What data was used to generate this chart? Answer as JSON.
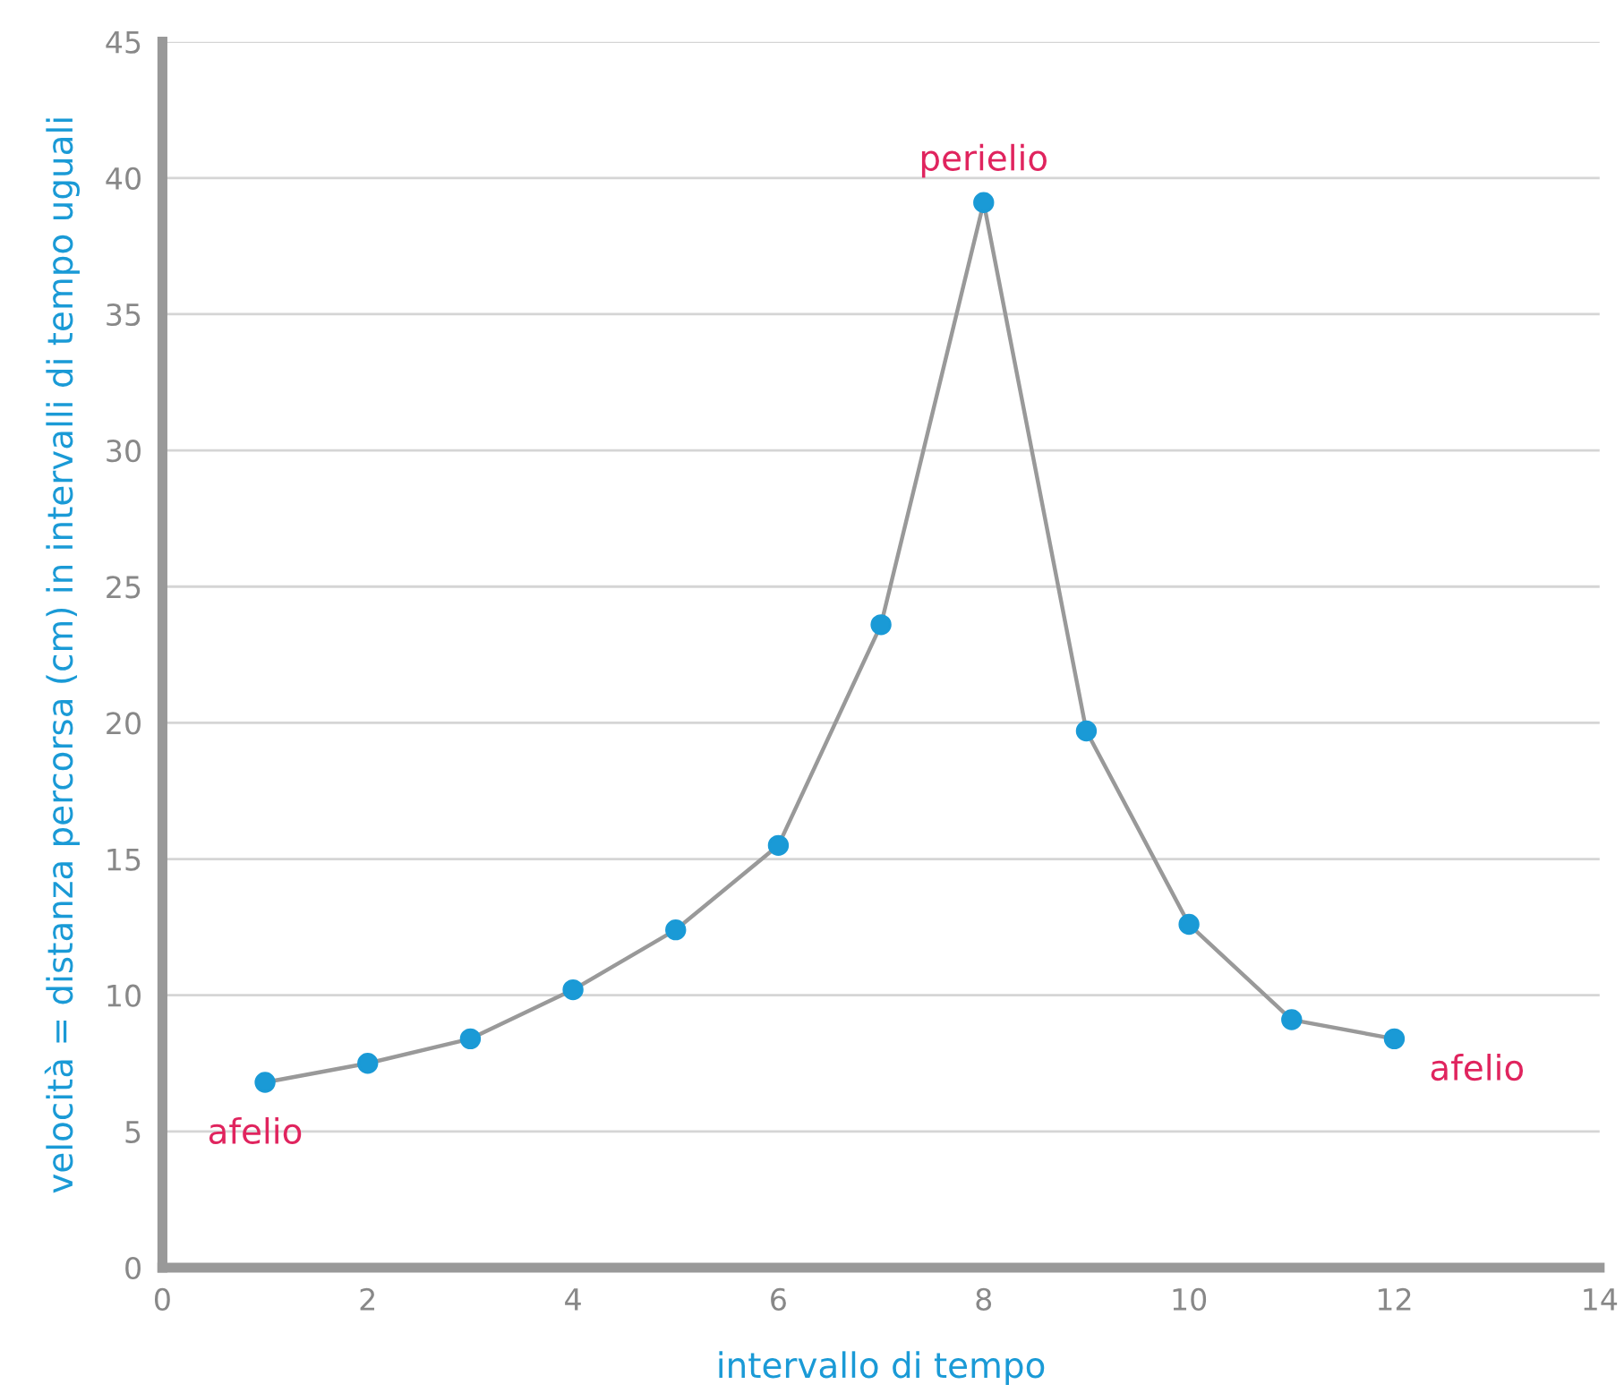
{
  "chart_data": {
    "type": "line",
    "xlabel": "intervallo di tempo",
    "ylabel": "velocità = distanza percorsa (cm) in intervalli di tempo uguali",
    "x": [
      1,
      2,
      3,
      4,
      5,
      6,
      7,
      8,
      9,
      10,
      11,
      12
    ],
    "series": [
      {
        "color": "#1a9ad6",
        "values": [
          6.8,
          7.5,
          8.4,
          10.2,
          12.4,
          15.5,
          23.6,
          39.1,
          19.7,
          12.6,
          9.1,
          8.4
        ]
      }
    ],
    "marker": "circle",
    "xlim": [
      0,
      14
    ],
    "xticks": [
      0,
      2,
      4,
      6,
      8,
      10,
      12,
      14
    ],
    "ylim": [
      0,
      45
    ],
    "yticks": [
      0,
      5,
      10,
      15,
      20,
      25,
      30,
      35,
      40,
      45
    ],
    "grid": "y",
    "annotations": [
      {
        "text": "afelio",
        "x": 1,
        "y": 6.8
      },
      {
        "text": "perielio",
        "x": 8,
        "y": 39.1
      },
      {
        "text": "afelio",
        "x": 12,
        "y": 8.4
      }
    ]
  }
}
